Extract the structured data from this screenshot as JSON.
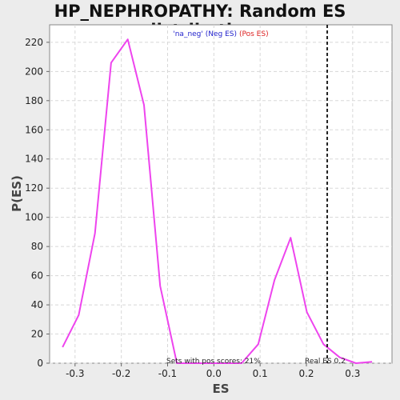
{
  "chart_data": {
    "type": "line",
    "title": "HP_NEPHROPATHY: Random ES distribution",
    "xlabel": "ES",
    "ylabel": "P(ES)",
    "xlim": [
      -0.355,
      0.385
    ],
    "ylim": [
      0,
      232
    ],
    "x_ticks": [
      -0.3,
      -0.2,
      -0.1,
      0.0,
      0.1,
      0.2,
      0.3
    ],
    "x_tick_labels": [
      "-0.3",
      "-0.2",
      "-0.1",
      "0.0",
      "0.1",
      "0.2",
      "0.3"
    ],
    "y_ticks": [
      0,
      20,
      40,
      60,
      80,
      100,
      120,
      140,
      160,
      180,
      200,
      220
    ],
    "y_tick_labels": [
      "0",
      "20",
      "40",
      "60",
      "80",
      "100",
      "120",
      "140",
      "160",
      "180",
      "200",
      "220"
    ],
    "grid": true,
    "series": [
      {
        "x": [
          -0.327,
          -0.292,
          -0.257,
          -0.222,
          -0.186,
          -0.151,
          -0.116,
          -0.08,
          -0.045,
          -0.01,
          0.025,
          0.06,
          0.096,
          0.131,
          0.166,
          0.201,
          0.237,
          0.272,
          0.307,
          0.342
        ],
        "y": [
          11,
          33,
          89,
          206,
          222,
          177,
          53,
          0,
          0,
          0,
          0,
          0,
          13,
          57,
          86,
          35,
          13,
          4,
          0,
          1
        ],
        "color": "#ee44ee"
      }
    ],
    "reference_line": {
      "x": 0.245,
      "label": "Real ES 0.2"
    },
    "annotation": "Sets with pos scores: 21%",
    "legend": {
      "position": "top-center",
      "entries": [
        {
          "label": "'na_neg' (Neg ES)",
          "color": "#2222cc"
        },
        {
          "label": "(Pos ES)",
          "color": "#dd2222"
        }
      ]
    }
  }
}
